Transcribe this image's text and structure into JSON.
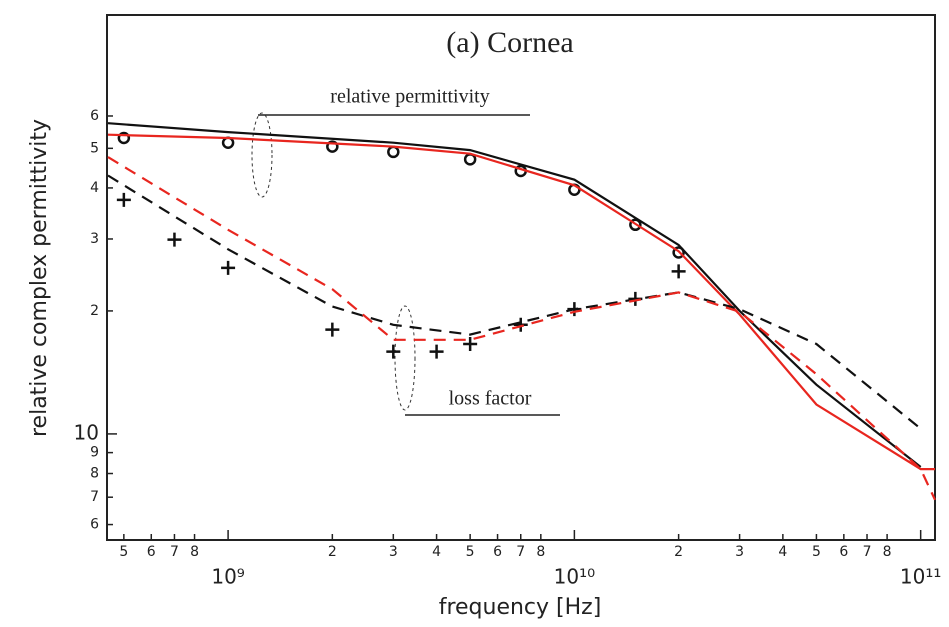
{
  "chart_data": {
    "type": "line",
    "title": "(a) Cornea",
    "x_label": "frequency [Hz]",
    "y_label": "relative complex permittivity",
    "annotations": [
      "relative permittivity",
      "loss factor"
    ],
    "xscale": "log",
    "yscale": "log",
    "xlim": [
      447000000,
      110000000000
    ],
    "ylim": [
      5.5,
      106
    ],
    "xticks": [
      {
        "value": 500000000,
        "label": "5"
      },
      {
        "value": 600000000,
        "label": "6"
      },
      {
        "value": 700000000,
        "label": "7"
      },
      {
        "value": 800000000,
        "label": "8"
      },
      {
        "value": 1000000000,
        "label": "10⁹"
      },
      {
        "value": 2000000000,
        "label": "2"
      },
      {
        "value": 3000000000,
        "label": "3"
      },
      {
        "value": 4000000000,
        "label": "4"
      },
      {
        "value": 5000000000,
        "label": "5"
      },
      {
        "value": 6000000000,
        "label": "6"
      },
      {
        "value": 7000000000,
        "label": "7"
      },
      {
        "value": 8000000000,
        "label": "8"
      },
      {
        "value": 10000000000,
        "label": "10¹⁰"
      },
      {
        "value": 20000000000,
        "label": "2"
      },
      {
        "value": 30000000000,
        "label": "3"
      },
      {
        "value": 40000000000,
        "label": "4"
      },
      {
        "value": 50000000000,
        "label": "5"
      },
      {
        "value": 60000000000,
        "label": "6"
      },
      {
        "value": 70000000000,
        "label": "7"
      },
      {
        "value": 80000000000,
        "label": "8"
      },
      {
        "value": 100000000000,
        "label": "10¹¹"
      }
    ],
    "yticks": [
      6,
      7,
      8,
      9,
      10,
      {
        "value": 20,
        "label": "2"
      },
      {
        "value": 30,
        "label": "3"
      },
      {
        "value": 40,
        "label": "4"
      },
      {
        "value": 50,
        "label": "5"
      },
      {
        "value": 60,
        "label": "6"
      }
    ],
    "series": [
      {
        "color": "#111111",
        "style": "circle",
        "x": [
          500000000,
          1000000000,
          2000000000,
          3000000000,
          5000000000,
          7000000000,
          10000000000,
          15000000000,
          20000000000
        ],
        "values": [
          53,
          51.6,
          50.5,
          49,
          47,
          44,
          39.6,
          32.5,
          27.8
        ]
      },
      {
        "color": "#111111",
        "style": "solid",
        "x": [
          450000000,
          1000000000,
          3000000000,
          5000000000,
          10000000000,
          20000000000,
          30000000000,
          50000000000,
          100000000000
        ],
        "values": [
          57.6,
          54.8,
          51.6,
          49.5,
          41.9,
          29,
          20,
          13.2,
          8.3
        ]
      },
      {
        "color": "#e8261f",
        "style": "solid",
        "x": [
          450000000,
          1000000000,
          3000000000,
          5000000000,
          10000000000,
          20000000000,
          30000000000,
          50000000000,
          100000000000,
          110000000000
        ],
        "values": [
          54,
          53,
          50.5,
          48.5,
          40.6,
          28,
          19.6,
          11.8,
          8.2,
          8.2
        ]
      },
      {
        "color": "#111111",
        "style": "plus",
        "x": [
          500000000,
          700000000,
          1000000000,
          2000000000,
          3000000000,
          4000000000,
          5000000000,
          7000000000,
          10000000000,
          15000000000,
          20000000000
        ],
        "values": [
          37.4,
          29.9,
          25.5,
          18,
          15.9,
          15.9,
          16.6,
          18.5,
          20.2,
          21.4,
          25
        ]
      },
      {
        "color": "#111111",
        "style": "dashed",
        "x": [
          450000000,
          1000000000,
          2000000000,
          3000000000,
          5000000000,
          10000000000,
          20000000000,
          30000000000,
          50000000000,
          100000000000
        ],
        "values": [
          42.9,
          28.3,
          20.5,
          18.5,
          17.5,
          20.2,
          22.2,
          20.2,
          16.6,
          10.3
        ]
      },
      {
        "color": "#e8261f",
        "style": "dashed",
        "x": [
          450000000,
          1000000000,
          2000000000,
          3000000000,
          5000000000,
          10000000000,
          20000000000,
          30000000000,
          50000000000,
          100000000000,
          110000000000
        ],
        "values": [
          47.6,
          31.6,
          22.6,
          17,
          17,
          19.9,
          22.2,
          19.9,
          14,
          8.2,
          6.9
        ]
      }
    ]
  }
}
